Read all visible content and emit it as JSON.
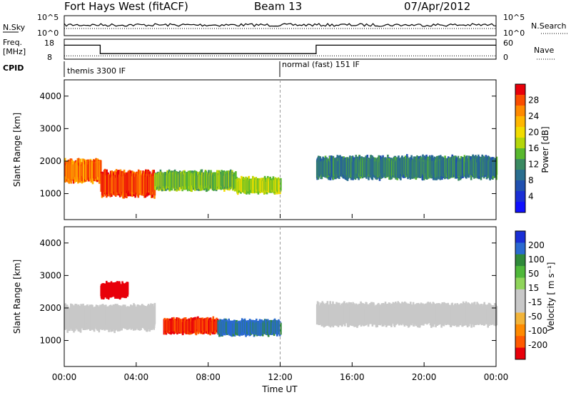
{
  "header": {
    "title": "Fort Hays West (fitACF)",
    "beam": "Beam 13",
    "date": "07/Apr/2012"
  },
  "noise_panel": {
    "left_label": "N.Sky",
    "right_label": "N.Search",
    "left_ticks": [
      "10^5",
      "10^0"
    ],
    "right_ticks": [
      "10^5",
      "10^0"
    ]
  },
  "freq_panel": {
    "left_label_line1": "Freq.",
    "left_label_line2": "[MHz]",
    "right_label": "Nave",
    "left_ticks": [
      "18",
      "8"
    ],
    "right_ticks": [
      "60",
      "0"
    ],
    "freq_steps": [
      {
        "from": 0,
        "to": 2,
        "mhz": 15.0
      },
      {
        "from": 2,
        "to": 14,
        "mhz": 10.8
      },
      {
        "from": 14,
        "to": 24,
        "mhz": 15.0
      }
    ],
    "nave_level": 10
  },
  "cpid": {
    "label": "CPID",
    "modes": [
      {
        "name": "themis 3300 IF",
        "start_hour": 0
      },
      {
        "name": "normal (fast) 151 IF",
        "start_hour": 12
      }
    ]
  },
  "chart_data": [
    {
      "type": "heatmap",
      "name": "power",
      "ylabel": "Slant Range [km]",
      "yticks": [
        "4000",
        "3000",
        "2000",
        "1000"
      ],
      "ylim": [
        200,
        4500
      ],
      "xlim": [
        0,
        24
      ],
      "colorbar": {
        "label": "Power [dB]",
        "ticks": [
          "28",
          "24",
          "20",
          "16",
          "12",
          "8",
          "4"
        ],
        "colors": [
          "#e8000a",
          "#fa4d00",
          "#ff8a00",
          "#ffb700",
          "#f2dc00",
          "#b4d60a",
          "#58b82e",
          "#3a8a62",
          "#2a6e8f",
          "#2050b0",
          "#1a2fd6",
          "#1010ff"
        ]
      },
      "echo_regions": [
        {
          "x0": 0.0,
          "x1": 2.0,
          "y_center": 1700,
          "y_halfwidth": 350,
          "power_db": 24
        },
        {
          "x0": 2.0,
          "x1": 5.0,
          "y_center": 1300,
          "y_halfwidth": 400,
          "power_db": 26
        },
        {
          "x0": 5.0,
          "x1": 9.5,
          "y_center": 1400,
          "y_halfwidth": 300,
          "power_db": 14
        },
        {
          "x0": 9.5,
          "x1": 12.0,
          "y_center": 1250,
          "y_halfwidth": 250,
          "power_db": 16
        },
        {
          "x0": 14.0,
          "x1": 24.0,
          "y_center": 1800,
          "y_halfwidth": 350,
          "power_db": 10
        }
      ]
    },
    {
      "type": "heatmap",
      "name": "velocity",
      "ylabel": "Slant Range [km]",
      "yticks": [
        "4000",
        "3000",
        "2000",
        "1000"
      ],
      "ylim": [
        200,
        4500
      ],
      "xlim": [
        0,
        24
      ],
      "colorbar": {
        "label": "Velocity [ m s⁻¹]",
        "ticks": [
          "200",
          "100",
          "50",
          "15",
          "-15",
          "-50",
          "-100",
          "-200"
        ],
        "colors": [
          "#1a2fd6",
          "#2a6ad0",
          "#2f8a3a",
          "#4fb83a",
          "#8fd45a",
          "#c8c8c8",
          "#c8c8c8",
          "#f2b43a",
          "#ff8a00",
          "#ff5a00",
          "#e8000a"
        ]
      },
      "echo_regions": [
        {
          "x0": 0.0,
          "x1": 5.0,
          "y_center": 1700,
          "y_halfwidth": 400,
          "velocity": 0
        },
        {
          "x0": 2.0,
          "x1": 3.5,
          "y_center": 2550,
          "y_halfwidth": 250,
          "velocity": -200
        },
        {
          "x0": 5.5,
          "x1": 8.5,
          "y_center": 1450,
          "y_halfwidth": 250,
          "velocity": -180
        },
        {
          "x0": 8.5,
          "x1": 12.0,
          "y_center": 1400,
          "y_halfwidth": 250,
          "velocity": 150
        },
        {
          "x0": 14.0,
          "x1": 24.0,
          "y_center": 1800,
          "y_halfwidth": 350,
          "velocity": 0
        }
      ]
    }
  ],
  "xaxis": {
    "label": "Time UT",
    "ticks": [
      "00:00",
      "04:00",
      "08:00",
      "12:00",
      "16:00",
      "20:00",
      "00:00"
    ]
  }
}
